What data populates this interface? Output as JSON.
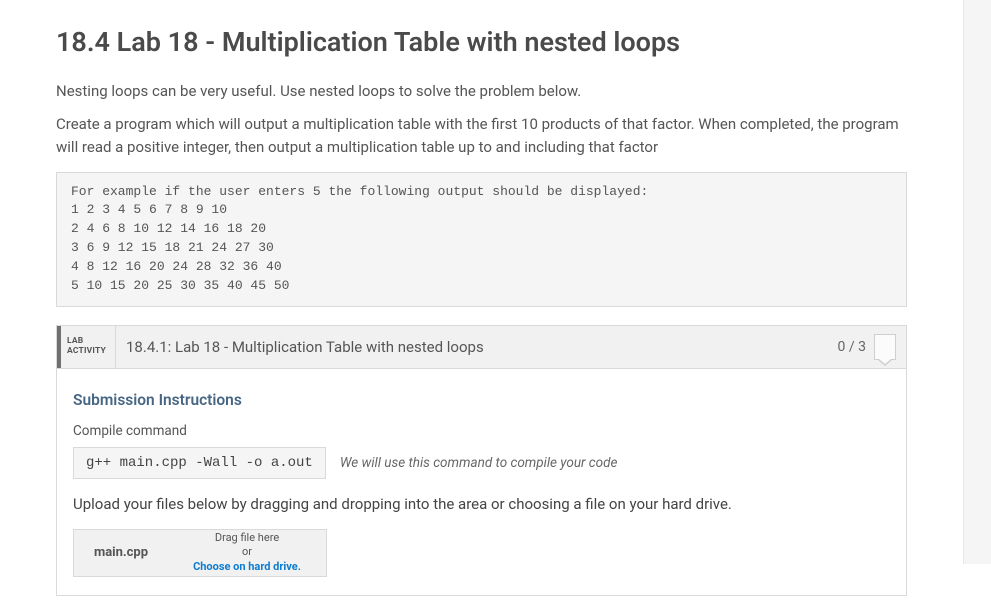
{
  "page": {
    "title": "18.4 Lab 18 - Multiplication Table with nested loops",
    "intro_p1": "Nesting loops can be very useful. Use nested loops to solve the problem below.",
    "intro_p2": "Create a program which will output a multiplication table with the first 10 products of that factor. When completed, the program will read a positive integer, then output a multiplication table up to and including that factor",
    "example_block": "For example if the user enters 5 the following output should be displayed:\n1 2 3 4 5 6 7 8 9 10\n2 4 6 8 10 12 14 16 18 20\n3 6 9 12 15 18 21 24 27 30\n4 8 12 16 20 24 28 32 36 40\n5 10 15 20 25 30 35 40 45 50"
  },
  "activity": {
    "badge_line1": "LAB",
    "badge_line2": "ACTIVITY",
    "title": "18.4.1: Lab 18 - Multiplication Table with nested loops",
    "score": "0 / 3"
  },
  "submission": {
    "heading": "Submission Instructions",
    "compile_label": "Compile command",
    "compile_command": "g++ main.cpp -Wall -o a.out",
    "compile_note": "We will use this command to compile your code",
    "upload_instructions": "Upload your files below by dragging and dropping into the area or choosing a file on your hard drive.",
    "dropzone": {
      "filename": "main.cpp",
      "drag_label": "Drag file here",
      "or_label": "or",
      "choose_label": "Choose on hard drive."
    }
  },
  "colors": {
    "heading_text": "#4a4a4a",
    "body_text": "#555555",
    "section_head": "#466684",
    "link": "#0d7bcf",
    "panel_bg": "#f5f5f5",
    "panel_border": "#d9d9d9",
    "badge_accent": "#707070",
    "gutter_bg": "#f5f5f5"
  }
}
